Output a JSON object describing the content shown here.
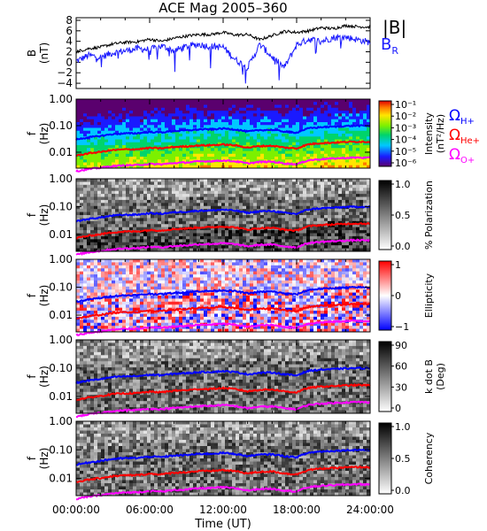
{
  "title": "ACE Mag 2005–360",
  "xlabel": "Time (UT)",
  "xticks": [
    "00:00:00",
    "06:00:00",
    "12:00:00",
    "18:00:00",
    "24:00:00"
  ],
  "colors": {
    "B_total": "#000000",
    "B_R": "#1a1aff",
    "H": "#0000ff",
    "He": "#ff0000",
    "O": "#ff00ff"
  },
  "chart_data": [
    {
      "type": "line",
      "ylabel": "B",
      "yunit": "(nT)",
      "ylim": [
        -5,
        8.5
      ],
      "yticks": [
        "8",
        "6",
        "4",
        "2",
        "0",
        "−2",
        "−4"
      ],
      "x_hours": [
        0,
        1,
        2,
        3,
        4,
        5,
        6,
        7,
        8,
        9,
        10,
        11,
        12,
        13,
        14,
        15,
        16,
        17,
        18,
        19,
        20,
        21,
        22,
        23,
        24
      ],
      "series": [
        {
          "name": "|B|",
          "values": [
            2.0,
            2.6,
            2.9,
            3.5,
            3.8,
            3.9,
            4.4,
            4.0,
            4.6,
            5.0,
            5.3,
            5.3,
            5.7,
            5.2,
            5.3,
            4.3,
            5.1,
            5.9,
            5.7,
            6.0,
            6.6,
            6.4,
            7.0,
            6.8,
            6.7
          ]
        },
        {
          "name": "B",
          "sub": "R",
          "values": [
            0.2,
            1.3,
            1.0,
            1.8,
            2.2,
            2.6,
            2.4,
            3.1,
            2.2,
            3.0,
            3.4,
            3.0,
            2.9,
            0.5,
            -1.0,
            3.4,
            1.0,
            -1.0,
            3.3,
            4.4,
            4.0,
            4.7,
            4.8,
            4.3,
            3.8
          ]
        }
      ]
    },
    {
      "type": "heatmap",
      "name": "Intensity",
      "ylabel": "f",
      "yunit": "(Hz)",
      "yticks": [
        "1.00",
        "0.10",
        "0.01"
      ],
      "colorbar_label": "Intensity",
      "colorbar_unit": "(nT²/Hz)",
      "colorbar_ticks": [
        "10⁻¹",
        "10⁻²",
        "10⁻³",
        "10⁻⁴",
        "10⁻⁵",
        "10⁻⁶"
      ],
      "legend": [
        {
          "symbol": "Ω",
          "sub": "H+"
        },
        {
          "symbol": "Ω",
          "sub": "He+"
        },
        {
          "symbol": "Ω",
          "sub": "O+"
        }
      ]
    },
    {
      "type": "heatmap",
      "name": "% Polarization",
      "ylabel": "f",
      "yunit": "(Hz)",
      "yticks": [
        "1.00",
        "0.10",
        "0.01"
      ],
      "colorbar_label": "% Polarization",
      "colorbar_unit": "",
      "colorbar_ticks": [
        "1.0",
        "0.5",
        "0.0"
      ]
    },
    {
      "type": "heatmap",
      "name": "Ellipticity",
      "ylabel": "f",
      "yunit": "(Hz)",
      "yticks": [
        "1.00",
        "0.10",
        "0.01"
      ],
      "colorbar_label": "Ellipticity",
      "colorbar_unit": "",
      "colorbar_ticks": [
        "1",
        "0",
        "−1"
      ]
    },
    {
      "type": "heatmap",
      "name": "k dot B",
      "ylabel": "f",
      "yunit": "(Hz)",
      "yticks": [
        "1.00",
        "0.10",
        "0.01"
      ],
      "colorbar_label": "k dot B",
      "colorbar_unit": "(Deg)",
      "colorbar_ticks": [
        "90",
        "60",
        "30",
        "0"
      ]
    },
    {
      "type": "heatmap",
      "name": "Coherency",
      "ylabel": "f",
      "yunit": "(Hz)",
      "yticks": [
        "1.00",
        "0.10",
        "0.01"
      ],
      "colorbar_label": "Coherency",
      "colorbar_unit": "",
      "colorbar_ticks": [
        "1.0",
        "0.5",
        "0.0"
      ]
    }
  ],
  "gyrofrequency_hz": {
    "x_hours": [
      0,
      1,
      2,
      3,
      4,
      5,
      6,
      7,
      8,
      9,
      10,
      11,
      12,
      13,
      14,
      15,
      16,
      17,
      18,
      19,
      20,
      21,
      22,
      23,
      24
    ],
    "H+": [
      0.03,
      0.036,
      0.041,
      0.048,
      0.051,
      0.052,
      0.058,
      0.056,
      0.063,
      0.066,
      0.072,
      0.073,
      0.078,
      0.072,
      0.06,
      0.068,
      0.07,
      0.06,
      0.055,
      0.08,
      0.088,
      0.092,
      0.097,
      0.1,
      0.098
    ],
    "He+": [
      0.0075,
      0.009,
      0.0103,
      0.012,
      0.0128,
      0.013,
      0.0145,
      0.014,
      0.0158,
      0.0165,
      0.018,
      0.0183,
      0.0195,
      0.018,
      0.015,
      0.017,
      0.0175,
      0.015,
      0.0138,
      0.02,
      0.022,
      0.023,
      0.0243,
      0.025,
      0.0245
    ],
    "O+": [
      0.0019,
      0.0023,
      0.0026,
      0.003,
      0.0032,
      0.0033,
      0.0036,
      0.0035,
      0.0039,
      0.0041,
      0.0045,
      0.0046,
      0.0049,
      0.0045,
      0.0038,
      0.0043,
      0.0044,
      0.0038,
      0.0035,
      0.005,
      0.0055,
      0.0058,
      0.0061,
      0.0063,
      0.0061
    ]
  }
}
